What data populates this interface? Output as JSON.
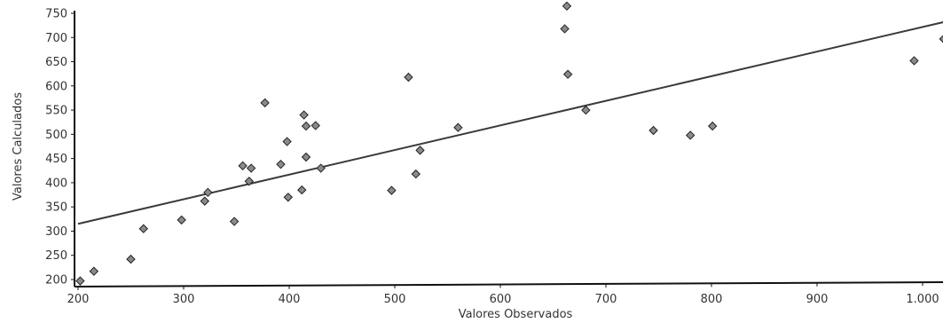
{
  "chart_data": {
    "type": "scatter",
    "xlabel": "Valores Observados",
    "ylabel": "Valores Calculados",
    "xlim": [
      200,
      1000
    ],
    "ylim": [
      200,
      750
    ],
    "x_ticks": [
      200,
      300,
      400,
      500,
      600,
      700,
      800,
      900,
      1000
    ],
    "x_tick_labels": [
      "200",
      "300",
      "400",
      "500",
      "600",
      "700",
      "800",
      "900",
      "1.000"
    ],
    "y_ticks": [
      200,
      250,
      300,
      350,
      400,
      450,
      500,
      550,
      600,
      650,
      700,
      750
    ],
    "y_tick_labels": [
      "200",
      "250",
      "300",
      "350",
      "400",
      "450",
      "500",
      "550",
      "600",
      "650",
      "700",
      "750"
    ],
    "grid": false,
    "legend": false,
    "points": [
      {
        "x": 202,
        "y": 197
      },
      {
        "x": 215,
        "y": 217
      },
      {
        "x": 250,
        "y": 242
      },
      {
        "x": 262,
        "y": 305
      },
      {
        "x": 298,
        "y": 323
      },
      {
        "x": 320,
        "y": 362
      },
      {
        "x": 323,
        "y": 380
      },
      {
        "x": 348,
        "y": 320
      },
      {
        "x": 356,
        "y": 435
      },
      {
        "x": 362,
        "y": 403
      },
      {
        "x": 364,
        "y": 430
      },
      {
        "x": 377,
        "y": 565
      },
      {
        "x": 392,
        "y": 438
      },
      {
        "x": 398,
        "y": 485
      },
      {
        "x": 399,
        "y": 370
      },
      {
        "x": 412,
        "y": 385
      },
      {
        "x": 414,
        "y": 540
      },
      {
        "x": 416,
        "y": 517
      },
      {
        "x": 416,
        "y": 453
      },
      {
        "x": 425,
        "y": 518
      },
      {
        "x": 430,
        "y": 430
      },
      {
        "x": 497,
        "y": 384
      },
      {
        "x": 513,
        "y": 618
      },
      {
        "x": 520,
        "y": 418
      },
      {
        "x": 524,
        "y": 467
      },
      {
        "x": 560,
        "y": 514
      },
      {
        "x": 661,
        "y": 718
      },
      {
        "x": 663,
        "y": 765
      },
      {
        "x": 664,
        "y": 624
      },
      {
        "x": 681,
        "y": 550
      },
      {
        "x": 745,
        "y": 508
      },
      {
        "x": 780,
        "y": 498
      },
      {
        "x": 801,
        "y": 517
      },
      {
        "x": 992,
        "y": 652
      },
      {
        "x": 1020,
        "y": 697
      }
    ],
    "trendline": {
      "x": [
        200,
        1030
      ],
      "y": [
        315,
        737
      ]
    }
  }
}
